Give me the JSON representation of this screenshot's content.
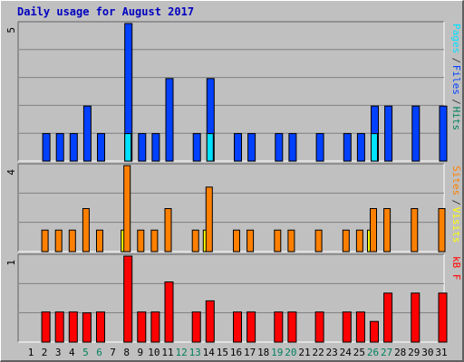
{
  "chart_data": {
    "type": "bar",
    "title": "Daily usage for August 2017",
    "categories": [
      "1",
      "2",
      "3",
      "4",
      "5",
      "6",
      "7",
      "8",
      "9",
      "10",
      "11",
      "12",
      "13",
      "14",
      "15",
      "16",
      "17",
      "18",
      "19",
      "20",
      "21",
      "22",
      "23",
      "24",
      "25",
      "26",
      "27",
      "28",
      "29",
      "30",
      "31"
    ],
    "weekend_days": [
      "5",
      "6",
      "12",
      "13",
      "19",
      "20",
      "26",
      "27"
    ],
    "panels": [
      {
        "name": "hits-files-pages",
        "ymax_label": "5",
        "ymax": 5,
        "legend": [
          {
            "label": "Pages",
            "color": "#00e0ff"
          },
          {
            "label": "/",
            "color": "#404040"
          },
          {
            "label": "Files",
            "color": "#0040ff"
          },
          {
            "label": "/",
            "color": "#404040"
          },
          {
            "label": "Hits",
            "color": "#00805c"
          }
        ],
        "series": [
          {
            "name": "Hits",
            "color": "#0040ff",
            "values": [
              0,
              1,
              1,
              1,
              2,
              1,
              0,
              5,
              1,
              1,
              3,
              0,
              1,
              3,
              0,
              1,
              1,
              0,
              1,
              1,
              0,
              1,
              0,
              1,
              1,
              2,
              2,
              0,
              2,
              0,
              2
            ]
          },
          {
            "name": "Files",
            "color": "#0040ff",
            "values": [
              0,
              1,
              1,
              1,
              2,
              1,
              0,
              5,
              1,
              1,
              3,
              0,
              1,
              3,
              0,
              1,
              1,
              0,
              1,
              1,
              0,
              1,
              0,
              1,
              1,
              2,
              2,
              0,
              2,
              0,
              2
            ]
          },
          {
            "name": "Pages",
            "color": "#00e0ff",
            "values": [
              0,
              0,
              0,
              0,
              0,
              0,
              0,
              1,
              0,
              0,
              0,
              0,
              0,
              1,
              0,
              0,
              0,
              0,
              0,
              0,
              0,
              0,
              0,
              0,
              0,
              1,
              0,
              0,
              0,
              0,
              0
            ]
          }
        ]
      },
      {
        "name": "visits-sites",
        "ymax_label": "4",
        "ymax": 4,
        "legend": [
          {
            "label": "Sites",
            "color": "#ff8000"
          },
          {
            "label": "/",
            "color": "#404040"
          },
          {
            "label": "Visits",
            "color": "#ffff00"
          }
        ],
        "series": [
          {
            "name": "Visits",
            "color": "#ffff00",
            "values": [
              0,
              0,
              0,
              0,
              0,
              0,
              0,
              1,
              0,
              0,
              0,
              0,
              0,
              1,
              0,
              0,
              0,
              0,
              0,
              0,
              0,
              0,
              0,
              0,
              0,
              1,
              0,
              0,
              0,
              0,
              0
            ]
          },
          {
            "name": "Sites",
            "color": "#ff8000",
            "values": [
              0,
              1,
              1,
              1,
              2,
              1,
              0,
              4,
              1,
              1,
              2,
              0,
              1,
              3,
              0,
              1,
              1,
              0,
              1,
              1,
              0,
              1,
              0,
              1,
              1,
              2,
              2,
              0,
              2,
              0,
              2
            ]
          }
        ]
      },
      {
        "name": "kbytes",
        "ymax_label": "1",
        "ymax": 1,
        "legend": [
          {
            "label": "kB F",
            "color": "#ff0000"
          }
        ],
        "series": [
          {
            "name": "kB F",
            "color": "#ff0000",
            "values": [
              0,
              0.35,
              0.35,
              0.35,
              0.34,
              0.35,
              0,
              1.0,
              0.35,
              0.35,
              0.7,
              0,
              0.35,
              0.48,
              0,
              0.35,
              0.35,
              0,
              0.35,
              0.35,
              0,
              0.35,
              0,
              0.35,
              0.35,
              0.24,
              0.57,
              0,
              0.57,
              0,
              0.57
            ]
          }
        ]
      }
    ]
  }
}
